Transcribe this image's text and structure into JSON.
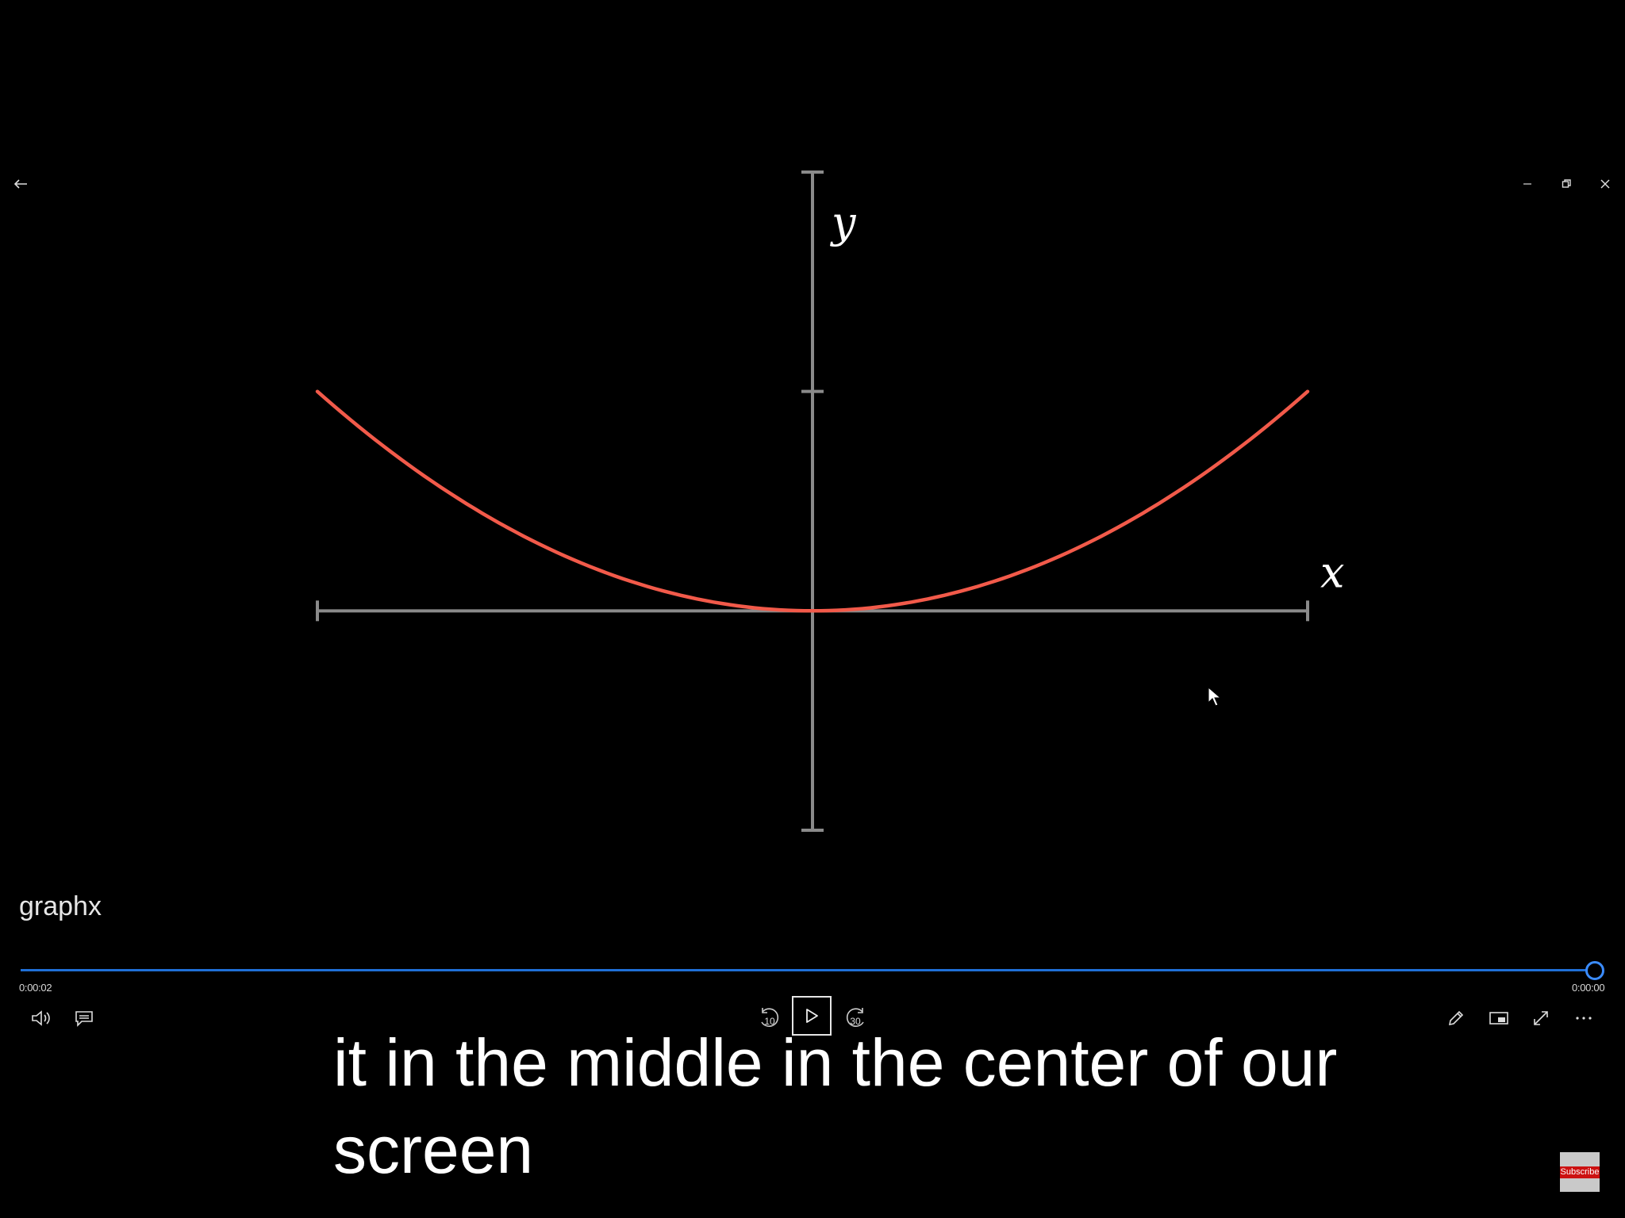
{
  "window": {
    "back_icon": "arrow-left-icon",
    "minimize_icon": "minimize-icon",
    "restore_icon": "restore-icon",
    "close_icon": "close-icon"
  },
  "chart_data": {
    "type": "line",
    "function": "y = x^2",
    "x": [
      -1,
      -0.75,
      -0.5,
      -0.25,
      0,
      0.25,
      0.5,
      0.75,
      1
    ],
    "series": [
      {
        "values": [
          1,
          0.5625,
          0.25,
          0.0625,
          0,
          0.0625,
          0.25,
          0.5625,
          1
        ],
        "color": "#f25a4a"
      }
    ],
    "xlabel": "x",
    "ylabel": "y",
    "xlim": [
      -1,
      1
    ],
    "ylim": [
      -1,
      2
    ],
    "y_tick_values": [
      1
    ],
    "axis_color": "#8a8a8a",
    "grid": false
  },
  "player": {
    "video_title": "graphx",
    "elapsed": "0:00:02",
    "remaining": "0:00:00",
    "progress": 1.0,
    "accent_color": "#1f6fd6",
    "controls": {
      "volume_icon": "volume-icon",
      "captions_icon": "captions-icon",
      "skip_back_label": "10",
      "play_icon": "play-icon",
      "skip_forward_label": "30",
      "edit_icon": "pencil-icon",
      "miniview_icon": "mini-view-icon",
      "fullscreen_icon": "fullscreen-icon",
      "more_icon": "more-icon"
    }
  },
  "caption": {
    "text": "it in the middle in the center of our screen"
  },
  "overlay": {
    "subscribe_label": "Subscribe"
  }
}
